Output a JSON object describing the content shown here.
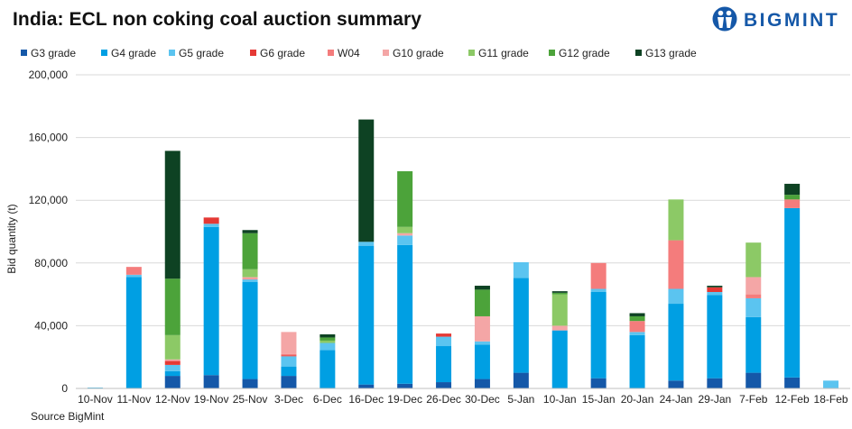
{
  "title": "India: ECL non coking coal auction summary",
  "brand": "BIGMINT",
  "source": "Source BigMint",
  "chart_data": {
    "type": "bar",
    "stacked": true,
    "title": "India: ECL non coking coal auction summary",
    "xlabel": "",
    "ylabel": "Bid quantity (t)",
    "ylim": [
      0,
      200000
    ],
    "yticks": [
      0,
      40000,
      80000,
      120000,
      160000,
      200000
    ],
    "ytick_labels": [
      "0",
      "40,000",
      "80,000",
      "120,000",
      "160,000",
      "200,000"
    ],
    "legend_position": "top",
    "categories": [
      "10-Nov",
      "11-Nov",
      "12-Nov",
      "19-Nov",
      "25-Nov",
      "3-Dec",
      "6-Dec",
      "16-Dec",
      "19-Dec",
      "26-Dec",
      "30-Dec",
      "5-Jan",
      "10-Jan",
      "15-Jan",
      "20-Jan",
      "24-Jan",
      "29-Jan",
      "7-Feb",
      "12-Feb",
      "18-Feb"
    ],
    "series": [
      {
        "name": "G3 grade",
        "color": "#1558A8",
        "values": [
          0,
          0,
          8000,
          8500,
          6000,
          8000,
          0,
          2500,
          3000,
          4000,
          6000,
          10000,
          0,
          6500,
          0,
          5000,
          6500,
          10000,
          7000,
          0
        ]
      },
      {
        "name": "G4 grade",
        "color": "#009FE3",
        "values": [
          500,
          71000,
          3000,
          94500,
          62000,
          6000,
          24500,
          88500,
          88500,
          23000,
          22000,
          60500,
          37000,
          55000,
          34000,
          49000,
          53000,
          35500,
          108000,
          0
        ]
      },
      {
        "name": "G5 grade",
        "color": "#5BC4F0",
        "values": [
          0,
          1500,
          4000,
          2000,
          1500,
          6500,
          4500,
          2500,
          6000,
          6000,
          2000,
          10000,
          0,
          2000,
          2000,
          9500,
          2000,
          12000,
          0,
          5000
        ]
      },
      {
        "name": "G6 grade",
        "color": "#E53935",
        "values": [
          0,
          0,
          2500,
          4000,
          0,
          500,
          0,
          0,
          0,
          2000,
          0,
          0,
          0,
          0,
          0,
          0,
          3000,
          0,
          0,
          0
        ]
      },
      {
        "name": "W04",
        "color": "#F47C7C",
        "values": [
          0,
          5000,
          0,
          0,
          500,
          1000,
          0,
          0,
          0,
          0,
          0,
          0,
          0,
          16500,
          7000,
          31000,
          0,
          2500,
          5500,
          0
        ]
      },
      {
        "name": "G10 grade",
        "color": "#F4A6A6",
        "values": [
          0,
          0,
          1000,
          0,
          1000,
          14000,
          0,
          0,
          1500,
          0,
          16000,
          0,
          3000,
          0,
          0,
          0,
          0,
          11000,
          0,
          0
        ]
      },
      {
        "name": "G11 grade",
        "color": "#8CC966",
        "values": [
          0,
          0,
          15500,
          0,
          5000,
          0,
          1500,
          0,
          4000,
          0,
          0,
          0,
          20000,
          0,
          0,
          26000,
          0,
          22000,
          0,
          0
        ]
      },
      {
        "name": "G12 grade",
        "color": "#4CA33A",
        "values": [
          0,
          0,
          36000,
          0,
          23000,
          0,
          2000,
          0,
          35500,
          0,
          17000,
          0,
          1000,
          0,
          3000,
          0,
          0,
          0,
          3000,
          0
        ]
      },
      {
        "name": "G13 grade",
        "color": "#0E4223",
        "values": [
          0,
          0,
          81500,
          0,
          2000,
          0,
          2000,
          78000,
          0,
          0,
          2500,
          0,
          1000,
          0,
          2000,
          0,
          1000,
          0,
          7000,
          0
        ]
      }
    ]
  }
}
